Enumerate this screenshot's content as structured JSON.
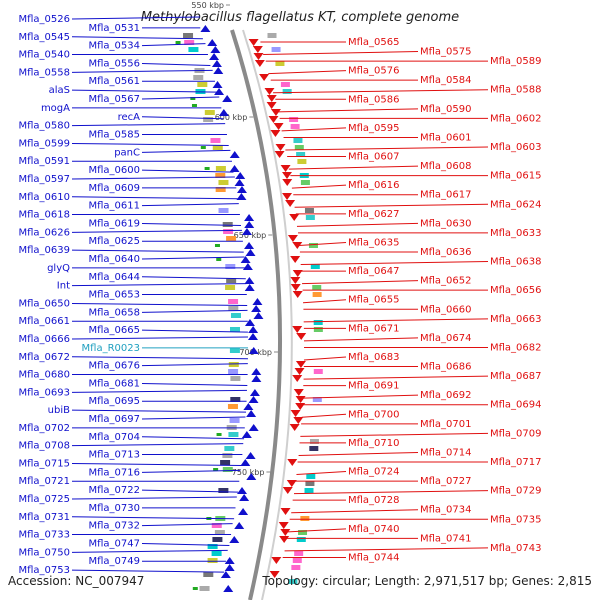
{
  "title": "Methylobacillus flagellatus KT, complete genome",
  "accession": "Accession: NC_007947",
  "topology": "Topology: circular; Length: 2,971,517 bp; Genes: 2,815",
  "colors": {
    "forward": "#1010cc",
    "reverse": "#e01010",
    "rna": "#20a0c0",
    "backbone": "#888888"
  },
  "ticks": [
    "550 kbp",
    "600 kbp",
    "650 kbp",
    "700 kbp",
    "750 kbp"
  ],
  "left_labels": [
    "Mfla_0526",
    "Mfla_0531",
    "Mfla_0545",
    "Mfla_0534",
    "Mfla_0540",
    "Mfla_0556",
    "Mfla_0558",
    "Mfla_0561",
    "alaS",
    "Mfla_0567",
    "mogA",
    "recA",
    "Mfla_0580",
    "Mfla_0585",
    "Mfla_0599",
    "panC",
    "Mfla_0591",
    "Mfla_0600",
    "Mfla_0597",
    "Mfla_0609",
    "Mfla_0610",
    "Mfla_0611",
    "Mfla_0618",
    "Mfla_0619",
    "Mfla_0626",
    "Mfla_0625",
    "Mfla_0639",
    "Mfla_0640",
    "glyQ",
    "Mfla_0644",
    "Int",
    "Mfla_0653",
    "Mfla_0650",
    "Mfla_0658",
    "Mfla_0661",
    "Mfla_0665",
    "Mfla_0666",
    "Mfla_R0023",
    "Mfla_0672",
    "Mfla_0676",
    "Mfla_0680",
    "Mfla_0681",
    "Mfla_0693",
    "Mfla_0695",
    "ubiB",
    "Mfla_0697",
    "Mfla_0702",
    "Mfla_0704",
    "Mfla_0708",
    "Mfla_0713",
    "Mfla_0715",
    "Mfla_0716",
    "Mfla_0721",
    "Mfla_0722",
    "Mfla_0725",
    "Mfla_0730",
    "Mfla_0731",
    "Mfla_0732",
    "Mfla_0733",
    "Mfla_0747",
    "Mfla_0750",
    "Mfla_0749",
    "Mfla_0753"
  ],
  "right_labels": [
    "Mfla_0565",
    "Mfla_0575",
    "Mfla_0589",
    "Mfla_0576",
    "Mfla_0584",
    "Mfla_0588",
    "Mfla_0586",
    "Mfla_0590",
    "Mfla_0602",
    "Mfla_0595",
    "Mfla_0601",
    "Mfla_0603",
    "Mfla_0607",
    "Mfla_0608",
    "Mfla_0615",
    "Mfla_0616",
    "Mfla_0617",
    "Mfla_0624",
    "Mfla_0627",
    "Mfla_0630",
    "Mfla_0633",
    "Mfla_0635",
    "Mfla_0636",
    "Mfla_0638",
    "Mfla_0647",
    "Mfla_0652",
    "Mfla_0656",
    "Mfla_0655",
    "Mfla_0660",
    "Mfla_0663",
    "Mfla_0671",
    "Mfla_0674",
    "Mfla_0682",
    "Mfla_0683",
    "Mfla_0686",
    "Mfla_0687",
    "Mfla_0691",
    "Mfla_0692",
    "Mfla_0694",
    "Mfla_0700",
    "Mfla_0701",
    "Mfla_0709",
    "Mfla_0710",
    "Mfla_0714",
    "Mfla_0717",
    "Mfla_0724",
    "Mfla_0727",
    "Mfla_0729",
    "Mfla_0728",
    "Mfla_0734",
    "Mfla_0735",
    "Mfla_0740",
    "Mfla_0741",
    "Mfla_0743",
    "Mfla_0744"
  ]
}
